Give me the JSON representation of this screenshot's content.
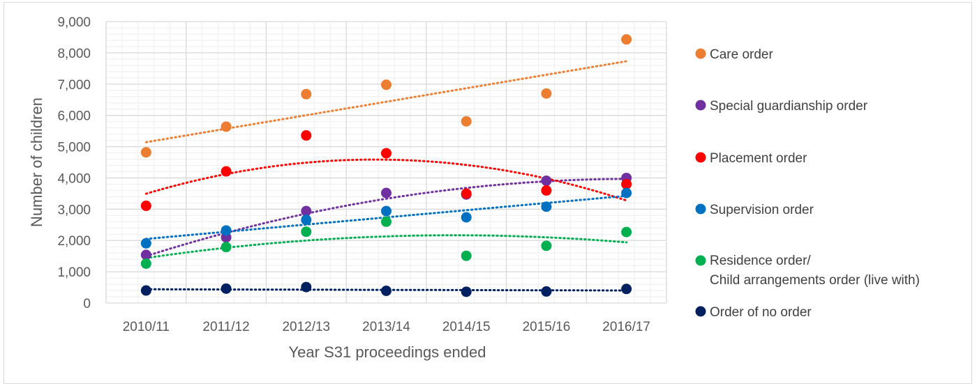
{
  "chart_data": {
    "type": "scatter",
    "title": "",
    "xlabel": "Year S31 proceedings ended",
    "ylabel": "Number of children",
    "categories": [
      "2010/11",
      "2011/12",
      "2012/13",
      "2013/14",
      "2014/15",
      "2015/16",
      "2016/17"
    ],
    "ylim": [
      0,
      9000
    ],
    "yticks": [
      0,
      1000,
      2000,
      3000,
      4000,
      5000,
      6000,
      7000,
      8000,
      9000
    ],
    "ytick_labels": [
      "0",
      "1,000",
      "2,000",
      "3,000",
      "4,000",
      "5,000",
      "6,000",
      "7,000",
      "8,000",
      "9,000"
    ],
    "grid": true,
    "legend_position": "right",
    "series": [
      {
        "name": "Care order",
        "color": "#ED7D31",
        "values": [
          4820,
          5640,
          6680,
          6980,
          5810,
          6700,
          8430
        ],
        "trend": "linear"
      },
      {
        "name": "Special guardianship order",
        "color": "#7030A0",
        "values": [
          1540,
          2100,
          2940,
          3520,
          3470,
          3910,
          4000
        ],
        "trend": "polynomial"
      },
      {
        "name": "Placement order",
        "color": "#FF0000",
        "values": [
          3110,
          4210,
          5360,
          4790,
          3500,
          3600,
          3800
        ],
        "trend": "polynomial"
      },
      {
        "name": "Supervision order",
        "color": "#0070C0",
        "values": [
          1910,
          2320,
          2660,
          2940,
          2740,
          3080,
          3520
        ],
        "trend": "linear"
      },
      {
        "name": "Residence order/",
        "name_line2": "Child arrangements order (live with)",
        "color": "#00B050",
        "values": [
          1260,
          1790,
          2280,
          2600,
          1510,
          1830,
          2270
        ],
        "trend": "polynomial"
      },
      {
        "name": "Order of no order",
        "color": "#002060",
        "values": [
          400,
          460,
          510,
          390,
          360,
          370,
          450
        ],
        "trend": "linear"
      }
    ]
  }
}
